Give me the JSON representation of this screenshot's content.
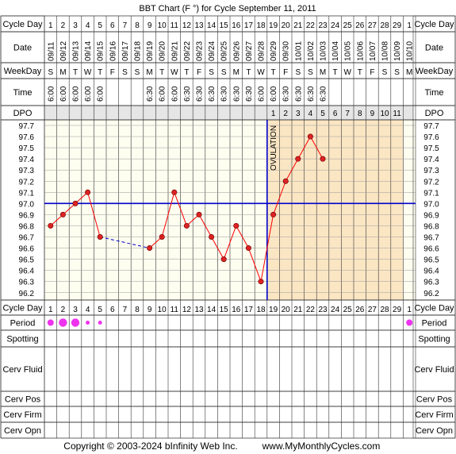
{
  "title": "BBT Chart (F °) for Cycle September 11, 2011",
  "footer": {
    "copyright": "Copyright © 2003-2024 bInfinity Web Inc.",
    "site": "www.MyMonthlyCycles.com"
  },
  "row_labels": {
    "cycle_day": "Cycle Day",
    "date": "Date",
    "weekday": "WeekDay",
    "time": "Time",
    "dpo": "DPO",
    "period": "Period",
    "spotting": "Spotting",
    "cerv_fluid": "Cerv Fluid",
    "cerv_pos": "Cerv Pos",
    "cerv_firm": "Cerv Firm",
    "cerv_opn": "Cerv Opn"
  },
  "cycle_days": [
    "1",
    "2",
    "3",
    "4",
    "5",
    "6",
    "7",
    "8",
    "9",
    "10",
    "11",
    "12",
    "13",
    "14",
    "15",
    "16",
    "17",
    "18",
    "19",
    "20",
    "21",
    "22",
    "23",
    "24",
    "25",
    "26",
    "27",
    "28",
    "29",
    "1"
  ],
  "dates": [
    "09/11",
    "09/12",
    "09/13",
    "09/14",
    "09/15",
    "09/16",
    "09/17",
    "09/18",
    "09/19",
    "09/20",
    "09/21",
    "09/22",
    "09/23",
    "09/24",
    "09/25",
    "09/26",
    "09/27",
    "09/28",
    "09/29",
    "09/30",
    "10/01",
    "10/02",
    "10/03",
    "10/04",
    "10/05",
    "10/06",
    "10/07",
    "10/08",
    "10/09",
    "10/10"
  ],
  "weekdays": [
    "S",
    "M",
    "T",
    "W",
    "T",
    "F",
    "S",
    "S",
    "M",
    "T",
    "W",
    "T",
    "F",
    "S",
    "S",
    "M",
    "T",
    "W",
    "T",
    "F",
    "S",
    "S",
    "M",
    "T",
    "W",
    "T",
    "F",
    "S",
    "S",
    "M"
  ],
  "times": [
    "6:00",
    "6:00",
    "6:00",
    "6:00",
    "6:00",
    "",
    "",
    "",
    "6:30",
    "6:00",
    "6:00",
    "6:30",
    "6:30",
    "6:30",
    "6:30",
    "6:30",
    "6:30",
    "6:00",
    "6:00",
    "6:30",
    "6:30",
    "6:30",
    "6:30",
    "",
    "",
    "",
    "",
    "",
    "",
    ""
  ],
  "dpo": [
    "",
    "",
    "",
    "",
    "",
    "",
    "",
    "",
    "",
    "",
    "",
    "",
    "",
    "",
    "",
    "",
    "",
    "",
    "1",
    "2",
    "3",
    "4",
    "5",
    "6",
    "7",
    "8",
    "9",
    "10",
    "11",
    ""
  ],
  "colors": {
    "grid_bg_follicular": "#fdfdf0",
    "grid_bg_luteal": "#fbe6c4",
    "header_bg": "#e6e6e6",
    "temp_line": "#ff0000",
    "marker_fill": "#dd2222",
    "coverline": "#0000cc",
    "period_dot": "#ee33ee",
    "gridline": "#999999"
  },
  "chart_data": {
    "type": "line",
    "title": "BBT Chart (F °) for Cycle September 11, 2011",
    "y_ticks": [
      "97.7",
      "97.6",
      "97.5",
      "97.4",
      "97.3",
      "97.2",
      "97.1",
      "97.0",
      "96.9",
      "96.8",
      "96.7",
      "96.6",
      "96.5",
      "96.4",
      "96.3",
      "96.2"
    ],
    "ylim": [
      96.2,
      97.7
    ],
    "temps": [
      96.8,
      96.9,
      97.0,
      97.1,
      96.7,
      null,
      null,
      null,
      96.6,
      96.7,
      97.1,
      96.8,
      96.9,
      96.7,
      96.5,
      96.8,
      96.6,
      96.3,
      96.9,
      97.2,
      97.4,
      97.6,
      97.4,
      null,
      null,
      null,
      null,
      null,
      null,
      null
    ],
    "dashed_gap": {
      "from_day_index": 4,
      "to_day_index": 8
    },
    "coverline": 97.0,
    "ovulation_day_index": 17,
    "ovulation_label": "OVULATION",
    "period": [
      2,
      3,
      3,
      1,
      1,
      0,
      0,
      0,
      0,
      0,
      0,
      0,
      0,
      0,
      0,
      0,
      0,
      0,
      0,
      0,
      0,
      0,
      0,
      0,
      0,
      0,
      0,
      0,
      0,
      2
    ]
  }
}
